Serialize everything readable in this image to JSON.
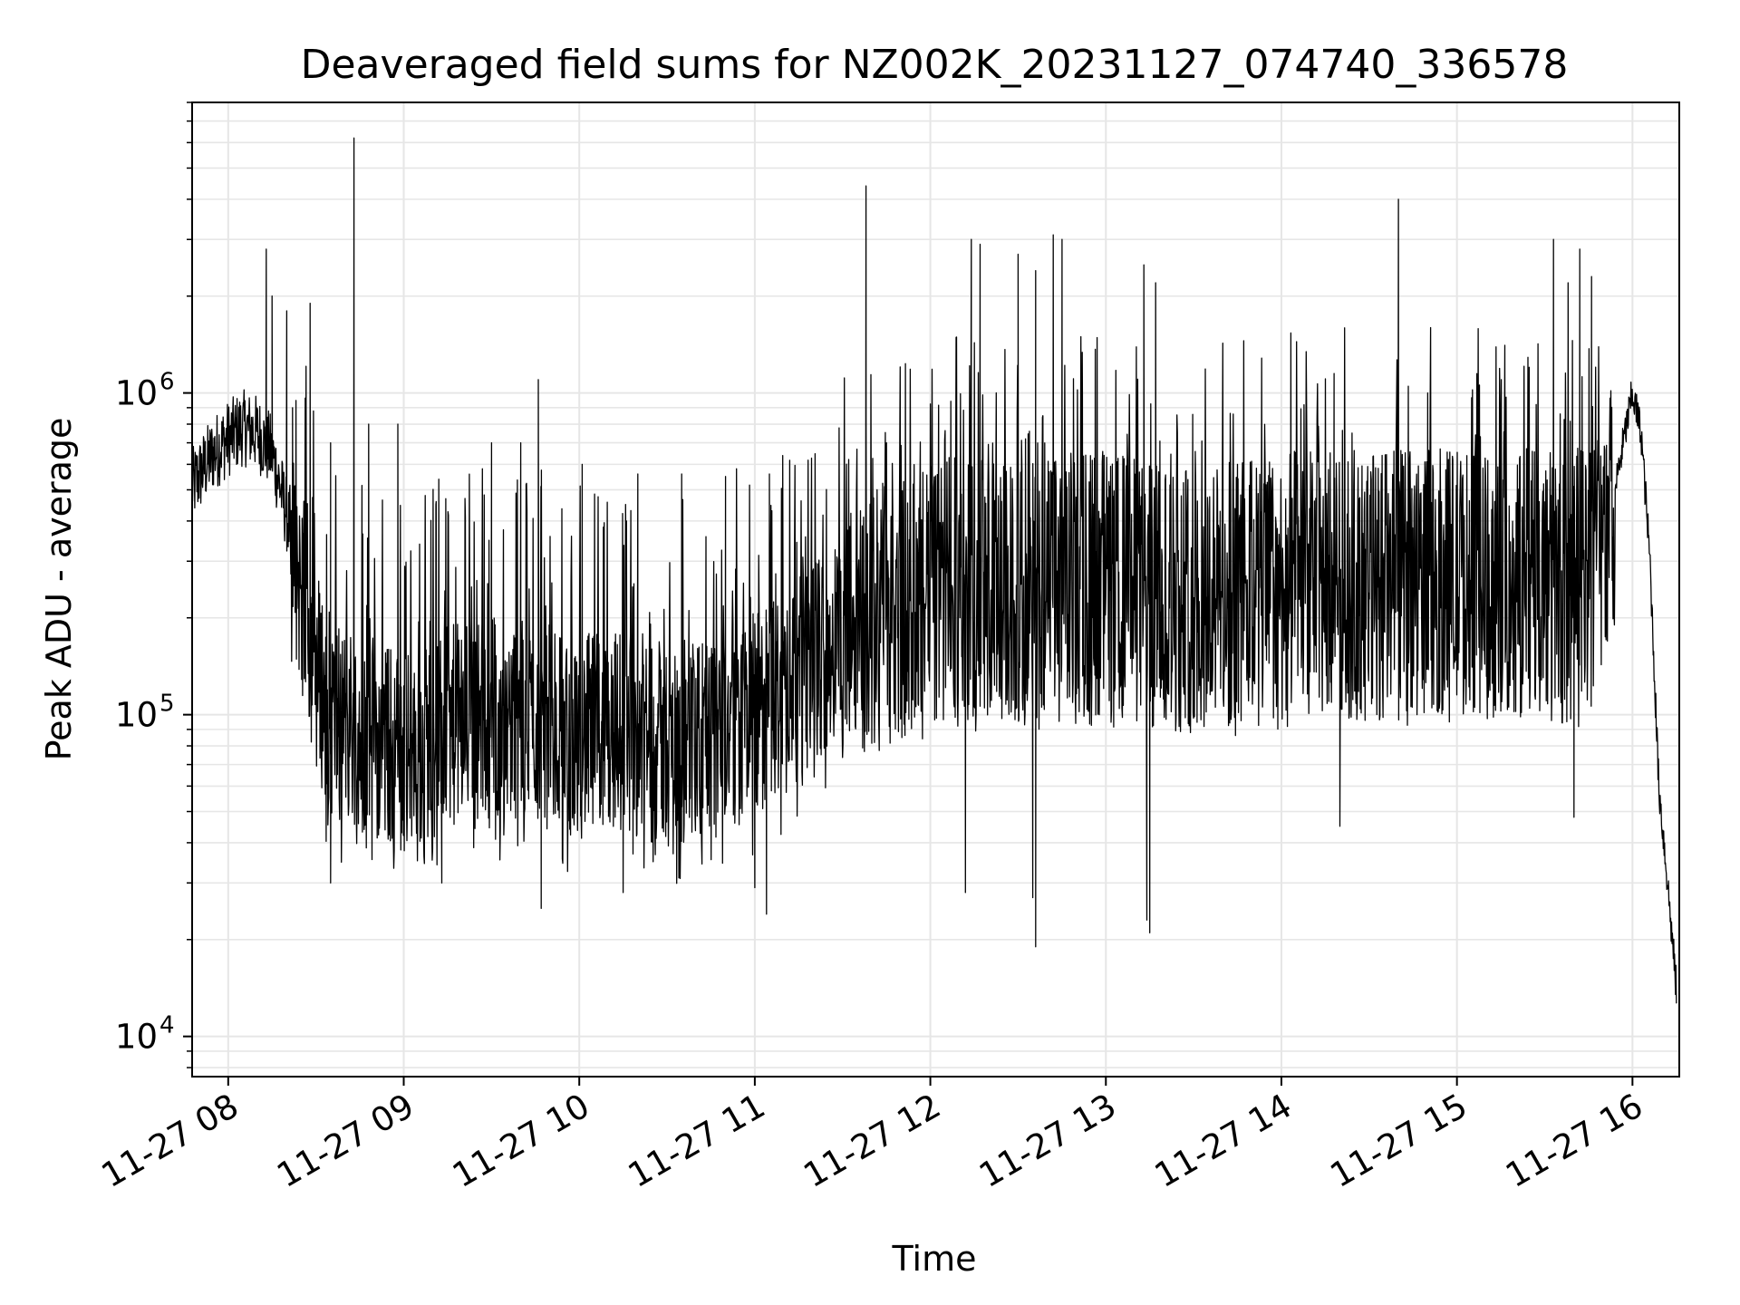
{
  "chart_data": {
    "type": "line",
    "title": "Deaveraged field sums for NZ002K_20231127_074740_336578",
    "xlabel": "Time",
    "ylabel": "Peak ADU - average",
    "y_scale": "log",
    "x_range": [
      "2023-11-27T07:47:40",
      "2023-11-27T16:16:00"
    ],
    "ylim": [
      7500,
      8000000
    ],
    "x_ticks": [
      "11-27 08",
      "11-27 09",
      "11-27 10",
      "11-27 11",
      "11-27 12",
      "11-27 13",
      "11-27 14",
      "11-27 15",
      "11-27 16"
    ],
    "y_ticks": [
      {
        "base": "10",
        "exp": "4"
      },
      {
        "base": "10",
        "exp": "5"
      },
      {
        "base": "10",
        "exp": "6"
      }
    ],
    "grid": true,
    "line_color": "#000000",
    "grid_color": "#e6e6e6",
    "series": [
      {
        "x": [
          "07:47",
          "07:55",
          "08:00",
          "08:05",
          "08:10",
          "08:15",
          "08:20",
          "08:25",
          "08:30",
          "08:35",
          "08:40",
          "08:50",
          "09:00",
          "09:10",
          "09:20",
          "09:30",
          "09:45",
          "10:00",
          "10:15",
          "10:30",
          "10:45",
          "11:00",
          "11:15",
          "11:30",
          "11:45",
          "12:00",
          "12:15",
          "12:30",
          "12:45",
          "13:00",
          "13:15",
          "13:30",
          "13:45",
          "14:00",
          "14:15",
          "14:30",
          "14:45",
          "15:00",
          "15:15",
          "15:30",
          "15:45",
          "15:52",
          "16:00",
          "16:03",
          "16:06",
          "16:09",
          "16:12",
          "16:15"
        ],
        "y": [
          500000,
          650000,
          720000,
          780000,
          750000,
          650000,
          420000,
          250000,
          140000,
          100000,
          95000,
          85000,
          75000,
          85000,
          95000,
          100000,
          95000,
          85000,
          90000,
          80000,
          85000,
          100000,
          130000,
          180000,
          210000,
          240000,
          240000,
          230000,
          250000,
          260000,
          230000,
          230000,
          240000,
          250000,
          260000,
          250000,
          260000,
          260000,
          250000,
          260000,
          250000,
          400000,
          1000000,
          750000,
          300000,
          60000,
          30000,
          14000
        ]
      }
    ],
    "spikes": [
      {
        "x": "08:13",
        "y": 2800000
      },
      {
        "x": "08:15",
        "y": 2000000
      },
      {
        "x": "08:20",
        "y": 1800000
      },
      {
        "x": "08:22",
        "y": 900000
      },
      {
        "x": "08:28",
        "y": 1900000
      },
      {
        "x": "08:35",
        "y": 700000
      },
      {
        "x": "08:43",
        "y": 6200000
      },
      {
        "x": "08:48",
        "y": 800000
      },
      {
        "x": "08:58",
        "y": 800000
      },
      {
        "x": "09:11",
        "y": 450000
      },
      {
        "x": "09:30",
        "y": 700000
      },
      {
        "x": "09:40",
        "y": 700000
      },
      {
        "x": "09:46",
        "y": 1100000
      },
      {
        "x": "10:01",
        "y": 600000
      },
      {
        "x": "10:20",
        "y": 560000
      },
      {
        "x": "10:35",
        "y": 560000
      },
      {
        "x": "10:50",
        "y": 550000
      },
      {
        "x": "11:05",
        "y": 560000
      },
      {
        "x": "11:38",
        "y": 4400000
      },
      {
        "x": "11:45",
        "y": 700000
      },
      {
        "x": "12:14",
        "y": 3000000
      },
      {
        "x": "12:17",
        "y": 2900000
      },
      {
        "x": "12:30",
        "y": 2700000
      },
      {
        "x": "12:36",
        "y": 2400000
      },
      {
        "x": "12:42",
        "y": 3100000
      },
      {
        "x": "12:45",
        "y": 3000000
      },
      {
        "x": "12:52",
        "y": 1000000
      },
      {
        "x": "13:13",
        "y": 2500000
      },
      {
        "x": "13:17",
        "y": 2200000
      },
      {
        "x": "13:45",
        "y": 600000
      },
      {
        "x": "14:05",
        "y": 650000
      },
      {
        "x": "14:18",
        "y": 1150000
      },
      {
        "x": "14:40",
        "y": 4000000
      },
      {
        "x": "14:50",
        "y": 1000000
      },
      {
        "x": "15:33",
        "y": 3000000
      },
      {
        "x": "15:38",
        "y": 2200000
      },
      {
        "x": "15:42",
        "y": 2800000
      },
      {
        "x": "15:46",
        "y": 2300000
      }
    ],
    "dips": [
      {
        "x": "08:35",
        "y": 30000
      },
      {
        "x": "09:13",
        "y": 30000
      },
      {
        "x": "09:47",
        "y": 25000
      },
      {
        "x": "10:15",
        "y": 28000
      },
      {
        "x": "11:00",
        "y": 29000
      },
      {
        "x": "11:04",
        "y": 24000
      },
      {
        "x": "12:12",
        "y": 28000
      },
      {
        "x": "12:35",
        "y": 27000
      },
      {
        "x": "12:36",
        "y": 19000
      },
      {
        "x": "13:14",
        "y": 23000
      },
      {
        "x": "13:15",
        "y": 21000
      },
      {
        "x": "14:20",
        "y": 45000
      },
      {
        "x": "15:40",
        "y": 48000
      }
    ]
  }
}
